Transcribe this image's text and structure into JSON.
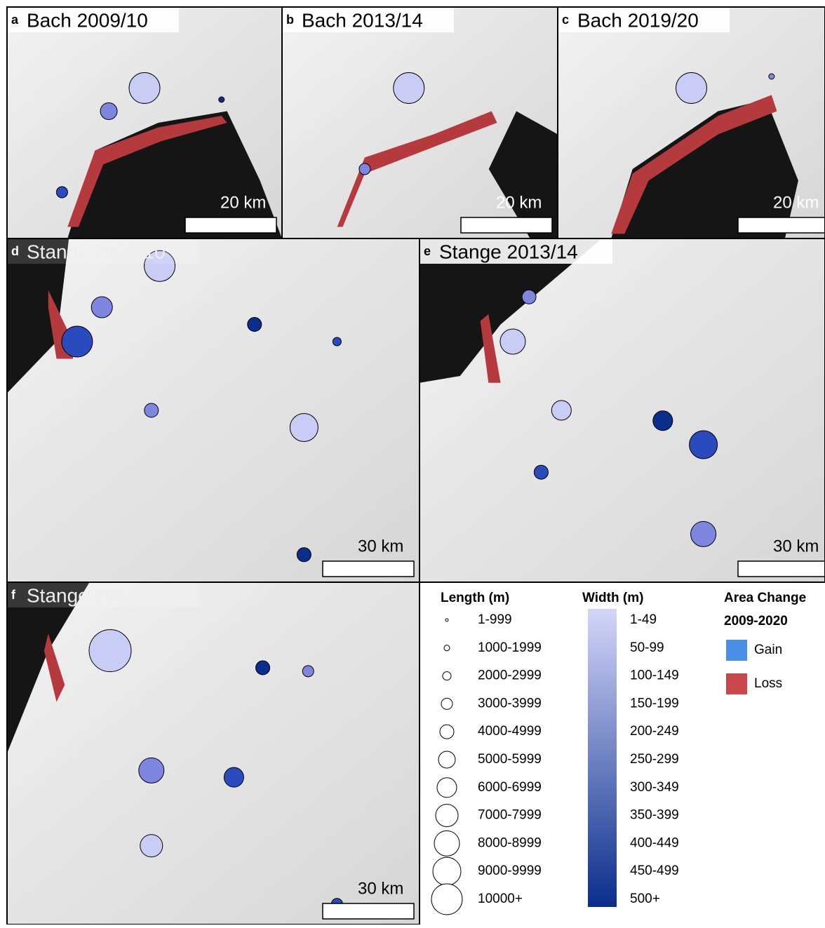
{
  "panels": [
    {
      "letter": "a",
      "title": "Bach 2009/10",
      "scale": "20 km"
    },
    {
      "letter": "b",
      "title": "Bach 2013/14",
      "scale": "20 km"
    },
    {
      "letter": "c",
      "title": "Bach 2019/20",
      "scale": "20 km"
    },
    {
      "letter": "d",
      "title": "Stange 2009/10",
      "scale": "30 km"
    },
    {
      "letter": "e",
      "title": "Stange 2013/14",
      "scale": "30 km"
    },
    {
      "letter": "f",
      "title": "Stange 2019/20",
      "scale": "30 km"
    }
  ],
  "legend": {
    "length": {
      "title": "Length (m)",
      "items": [
        "1-999",
        "1000-1999",
        "2000-2999",
        "3000-3999",
        "4000-4999",
        "5000-5999",
        "6000-6999",
        "7000-7999",
        "8000-8999",
        "9000-9999",
        "10000+"
      ]
    },
    "width": {
      "title": "Width (m)",
      "items": [
        "1-49",
        "50-99",
        "100-149",
        "150-199",
        "200-249",
        "250-299",
        "300-349",
        "350-399",
        "400-449",
        "450-499",
        "500+"
      ],
      "colors": [
        "#d4d6f8",
        "#0a2e8c"
      ]
    },
    "area": {
      "title": "Area Change",
      "subtitle": "2009-2020",
      "items": [
        {
          "label": "Gain",
          "color": "#4a8fe6"
        },
        {
          "label": "Loss",
          "color": "#c9484c"
        }
      ]
    }
  }
}
